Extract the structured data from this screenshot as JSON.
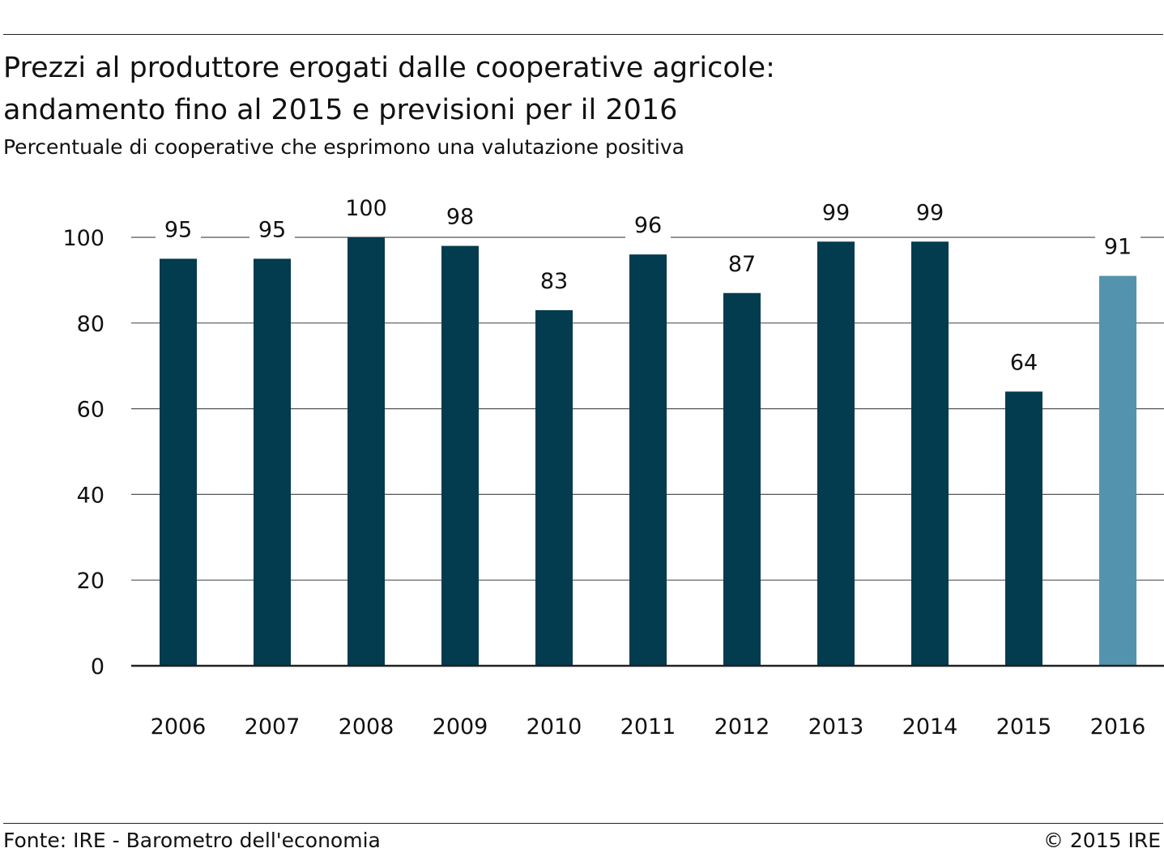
{
  "header": {
    "title_line1": "Prezzi al produttore erogati dalle cooperative agricole:",
    "title_line2": "andamento fino al 2015 e previsioni per il 2016",
    "subtitle": "Percentuale di cooperative che esprimono una valutazione positiva"
  },
  "footer": {
    "source": "Fonte: IRE - Barometro dell'economia",
    "copyright": "© 2015 IRE"
  },
  "colors": {
    "actual": "#033b4f",
    "forecast": "#5393ad",
    "gridline": "#555555",
    "axis": "#222222"
  },
  "chart_data": {
    "type": "bar",
    "categories": [
      "2006",
      "2007",
      "2008",
      "2009",
      "2010",
      "2011",
      "2012",
      "2013",
      "2014",
      "2015",
      "2016"
    ],
    "values": [
      95,
      95,
      100,
      98,
      83,
      96,
      87,
      99,
      99,
      64,
      91
    ],
    "value_labels": [
      "95",
      "95",
      "100",
      "98",
      "83",
      "96",
      "87",
      "99",
      "99",
      "64",
      "91"
    ],
    "forecast": [
      false,
      false,
      false,
      false,
      false,
      false,
      false,
      false,
      false,
      false,
      true
    ],
    "title": "Prezzi al produttore erogati dalle cooperative agricole: andamento fino al 2015 e previsioni per il 2016",
    "subtitle": "Percentuale di cooperative che esprimono una valutazione positiva",
    "xlabel": "",
    "ylabel": "",
    "ylim": [
      0,
      100
    ],
    "yticks": [
      0,
      20,
      40,
      60,
      80,
      100
    ],
    "grid": true
  }
}
